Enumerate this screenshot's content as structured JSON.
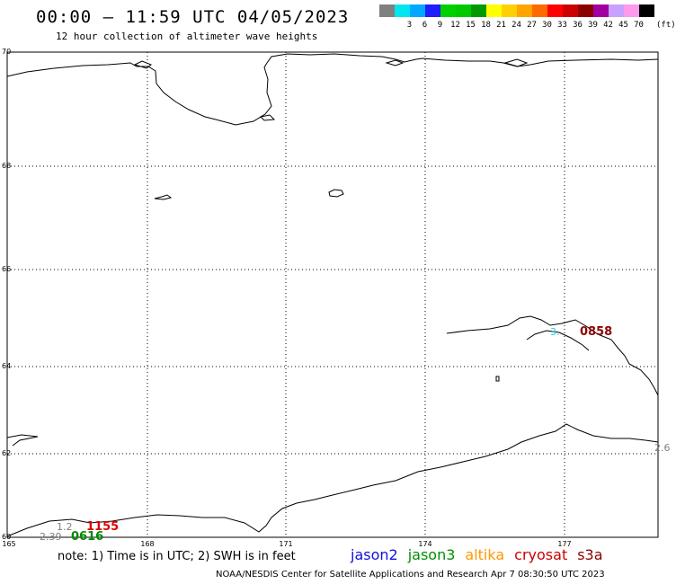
{
  "header": {
    "title": "00:00 – 11:59 UTC 04/05/2023",
    "subtitle": "12 hour collection of altimeter wave heights"
  },
  "color_scale": {
    "unit": "(ft)",
    "swatches": [
      {
        "label": "",
        "color": "#808080"
      },
      {
        "label": "3",
        "color": "#00e5ee"
      },
      {
        "label": "6",
        "color": "#00a8ff"
      },
      {
        "label": "9",
        "color": "#1e1eff"
      },
      {
        "label": "12",
        "color": "#00d000"
      },
      {
        "label": "15",
        "color": "#00c800"
      },
      {
        "label": "18",
        "color": "#009a00"
      },
      {
        "label": "21",
        "color": "#ffff00"
      },
      {
        "label": "24",
        "color": "#ffd000"
      },
      {
        "label": "27",
        "color": "#ffa500"
      },
      {
        "label": "30",
        "color": "#ff6a00"
      },
      {
        "label": "33",
        "color": "#ff0000"
      },
      {
        "label": "36",
        "color": "#cc0000"
      },
      {
        "label": "39",
        "color": "#8b0000"
      },
      {
        "label": "42",
        "color": "#a000a0"
      },
      {
        "label": "45",
        "color": "#c8a0ff"
      },
      {
        "label": "70",
        "color": "#ff99ee"
      },
      {
        "label": "",
        "color": "#000000"
      }
    ]
  },
  "map": {
    "latitudes": [
      "70",
      "68",
      "66",
      "64",
      "62",
      "60"
    ],
    "longitudes": [
      "165",
      "168",
      "171",
      "174",
      "177"
    ],
    "wave_labels": [
      "1.2",
      "2.39",
      "3.",
      "2.6"
    ],
    "pass_labels": [
      {
        "text": "1155",
        "color": "#dd0000"
      },
      {
        "text": "0616",
        "color": "#008800"
      },
      {
        "text": "0858",
        "color": "#8b0000"
      }
    ]
  },
  "footer": {
    "note": "note: 1) Time is in UTC; 2) SWH is in feet",
    "satellites": [
      {
        "name": "jason2",
        "color": "#1010e0"
      },
      {
        "name": "jason3",
        "color": "#009000"
      },
      {
        "name": "altika",
        "color": "#ff9900"
      },
      {
        "name": "cryosat",
        "color": "#cc0000"
      },
      {
        "name": "s3a",
        "color": "#8b0000"
      }
    ],
    "credit": "NOAA/NESDIS Center for Satellite Applications and Research   Apr  7 08:30:50 UTC 2023"
  }
}
